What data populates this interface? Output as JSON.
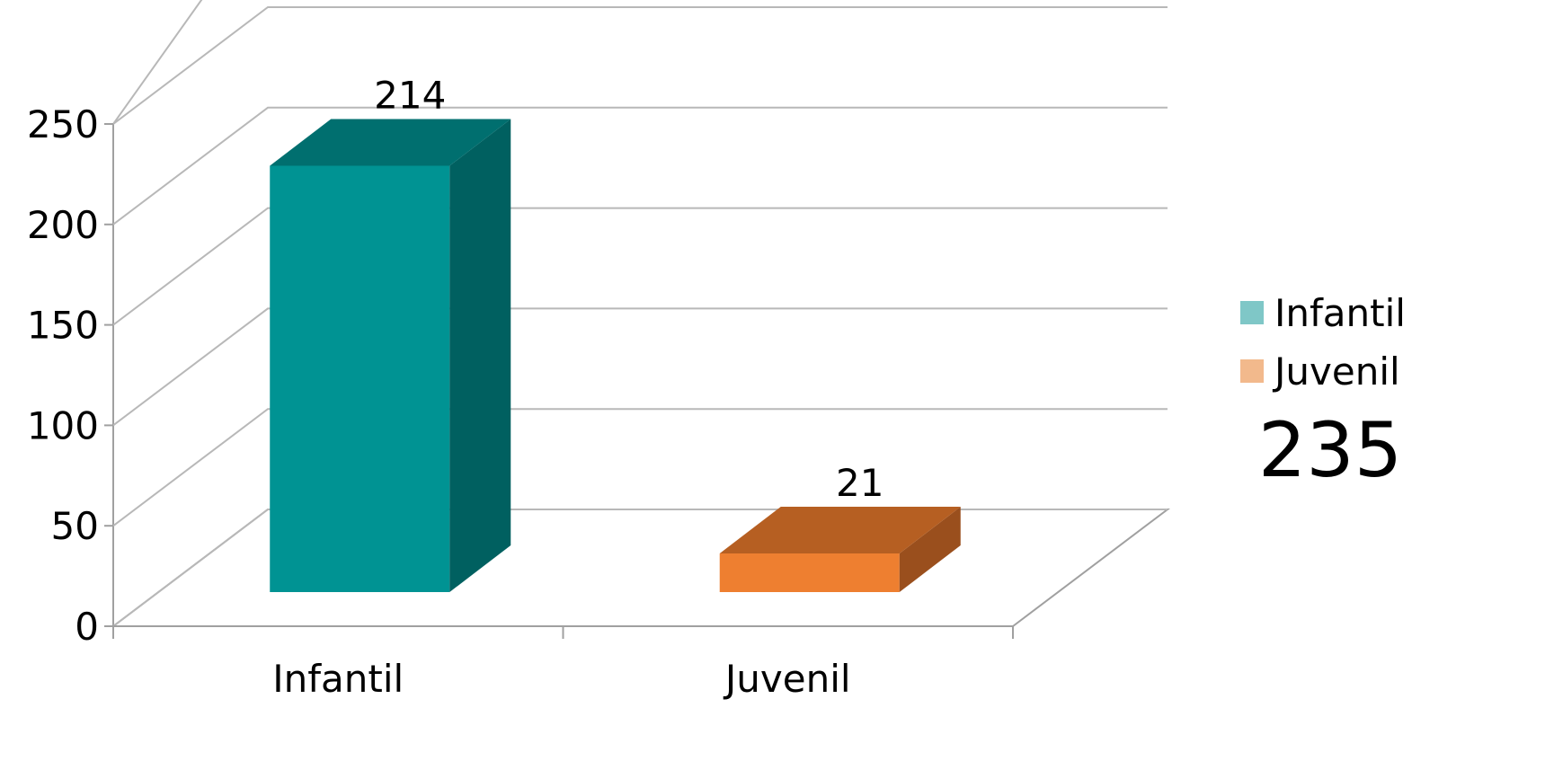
{
  "chart_data": {
    "type": "bar",
    "categories": [
      "Infantil",
      "Juvenil"
    ],
    "values": [
      214,
      21
    ],
    "data_labels": [
      "214",
      "21"
    ],
    "ylim": [
      0,
      250
    ],
    "yticks": [
      "0",
      "50",
      "100",
      "150",
      "200",
      "250"
    ],
    "grid": true,
    "three_d": true,
    "legend": {
      "placement": "right",
      "items": [
        {
          "label": "Infantil",
          "color": "#7fc7c7"
        },
        {
          "label": "Juvenil",
          "color": "#f2b98c"
        }
      ]
    },
    "colors": {
      "Infantil": {
        "front": "#009393",
        "top": "#006f6f",
        "side": "#006060"
      },
      "Juvenil": {
        "front": "#ee7f30",
        "top": "#b65f22",
        "side": "#9a4f1d"
      }
    },
    "annotation": "235"
  }
}
